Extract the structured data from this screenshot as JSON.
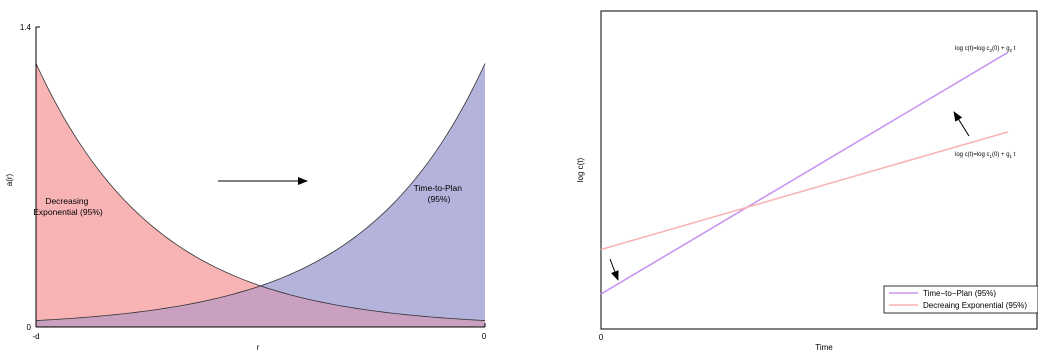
{
  "chart_data": [
    {
      "type": "area",
      "title": "",
      "xlabel": "r",
      "ylabel": "a(r)",
      "ylim": [
        0,
        1.4
      ],
      "x_ticks": [
        "-d",
        "0"
      ],
      "y_ticks": [
        "0",
        "1.4"
      ],
      "grid": false,
      "series": [
        {
          "name": "Decreasing Exponential (95%)",
          "color": "#f8b4b4",
          "shape": "decreasing-exponential",
          "start_value": 1.23,
          "end_value": 0.03
        },
        {
          "name": "Time-to-Plan (95%)",
          "color": "#b3b3dc",
          "shape": "increasing-exponential",
          "start_value": 0.03,
          "end_value": 1.23
        }
      ],
      "annotations": [
        {
          "id": "decreasing",
          "lines": [
            "Decreasing",
            "Exponential (95%)"
          ]
        },
        {
          "id": "timetoplan",
          "lines": [
            "Time-to-Plan",
            "(95%)"
          ]
        },
        {
          "id": "arrow",
          "direction": "right"
        }
      ]
    },
    {
      "type": "line",
      "title": "",
      "xlabel": "Time",
      "ylabel": "log c(t)",
      "x_ticks": [
        "0"
      ],
      "grid": false,
      "legend_position": "bottom-right",
      "series": [
        {
          "name": "Time−to−Plan (95%)",
          "color": "#c896f0",
          "start_value": 0.11,
          "end_value": 0.87
        },
        {
          "name": "Decreaing Exponential (95%)",
          "color": "#f8b4b4",
          "start_value": 0.25,
          "end_value": 0.62
        }
      ],
      "annotations": [
        {
          "id": "eq2",
          "main": "log c(t)=log c",
          "sub": "2",
          "mid": "(0) + g",
          "sub2": "2",
          "tail": " t"
        },
        {
          "id": "eq1",
          "main": "log c(t)=log c",
          "sub": "1",
          "mid": "(0) + g",
          "sub2": "1",
          "tail": " t"
        }
      ]
    }
  ]
}
